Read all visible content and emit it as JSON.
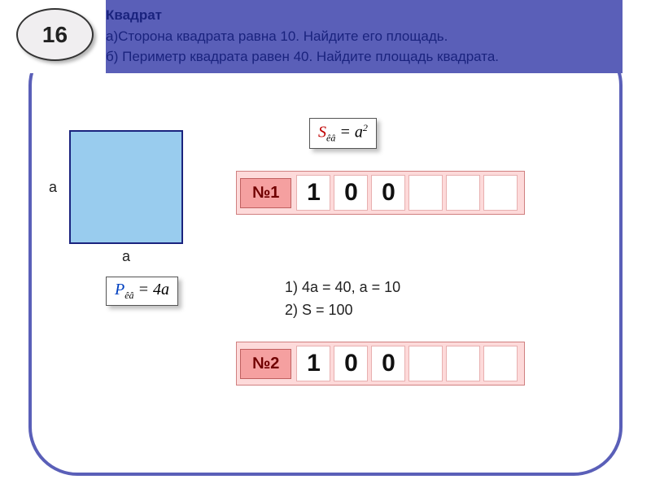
{
  "badge_number": "16",
  "header": {
    "title": "Квадрат",
    "line_a": "а)Сторона квадрата равна 10. Найдите его площадь.",
    "line_b": "б) Периметр квадрата равен 40. Найдите площадь квадрата."
  },
  "square": {
    "side_label": "а",
    "fill_color": "#99ccee",
    "border_color": "#1a237e"
  },
  "formulas": {
    "area": {
      "S": "S",
      "sub": "êâ",
      "eq": " = ",
      "a": "a",
      "sup": "2"
    },
    "perimeter": {
      "P": "P",
      "sub": "êâ",
      "eq": " = 4",
      "a": "a"
    }
  },
  "answers": {
    "a1": {
      "label": "№1",
      "cells": [
        "1",
        "0",
        "0",
        "",
        "",
        ""
      ]
    },
    "a2": {
      "label": "№2",
      "cells": [
        "1",
        "0",
        "0",
        "",
        "",
        ""
      ]
    }
  },
  "solution": {
    "line1": "1)    4а = 40,  а = 10",
    "line2": "2)    S = 100"
  },
  "colors": {
    "frame": "#5a5fb8",
    "header_text": "#1a237e",
    "answer_bg": "#fddada",
    "answer_label_bg": "#f5a0a0",
    "S_color": "#c00000",
    "P_color": "#0040c0"
  }
}
